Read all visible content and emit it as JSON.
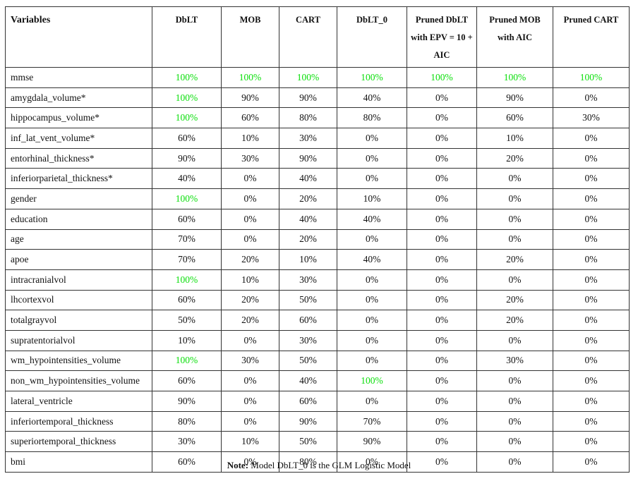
{
  "table": {
    "headers": [
      "Variables",
      "DbLT",
      "MOB",
      "CART",
      "DbLT_0",
      "Pruned DbLT with EPV = 10 + AIC",
      "Pruned MOB with AIC",
      "Pruned CART"
    ],
    "rows": [
      {
        "name": "mmse",
        "values": [
          "100%",
          "100%",
          "100%",
          "100%",
          "100%",
          "100%",
          "100%"
        ],
        "highlight": [
          true,
          true,
          true,
          true,
          true,
          true,
          true
        ]
      },
      {
        "name": "amygdala_volume*",
        "values": [
          "100%",
          "90%",
          "90%",
          "40%",
          "0%",
          "90%",
          "0%"
        ],
        "highlight": [
          true,
          false,
          false,
          false,
          false,
          false,
          false
        ]
      },
      {
        "name": "hippocampus_volume*",
        "values": [
          "100%",
          "60%",
          "80%",
          "80%",
          "0%",
          "60%",
          "30%"
        ],
        "highlight": [
          true,
          false,
          false,
          false,
          false,
          false,
          false
        ]
      },
      {
        "name": "inf_lat_vent_volume*",
        "values": [
          "60%",
          "10%",
          "30%",
          "0%",
          "0%",
          "10%",
          "0%"
        ],
        "highlight": [
          false,
          false,
          false,
          false,
          false,
          false,
          false
        ]
      },
      {
        "name": "entorhinal_thickness*",
        "values": [
          "90%",
          "30%",
          "90%",
          "0%",
          "0%",
          "20%",
          "0%"
        ],
        "highlight": [
          false,
          false,
          false,
          false,
          false,
          false,
          false
        ]
      },
      {
        "name": "inferiorparietal_thickness*",
        "values": [
          "40%",
          "0%",
          "40%",
          "0%",
          "0%",
          "0%",
          "0%"
        ],
        "highlight": [
          false,
          false,
          false,
          false,
          false,
          false,
          false
        ]
      },
      {
        "name": "gender",
        "values": [
          "100%",
          "0%",
          "20%",
          "10%",
          "0%",
          "0%",
          "0%"
        ],
        "highlight": [
          true,
          false,
          false,
          false,
          false,
          false,
          false
        ]
      },
      {
        "name": "education",
        "values": [
          "60%",
          "0%",
          "40%",
          "40%",
          "0%",
          "0%",
          "0%"
        ],
        "highlight": [
          false,
          false,
          false,
          false,
          false,
          false,
          false
        ]
      },
      {
        "name": "age",
        "values": [
          "70%",
          "0%",
          "20%",
          "0%",
          "0%",
          "0%",
          "0%"
        ],
        "highlight": [
          false,
          false,
          false,
          false,
          false,
          false,
          false
        ]
      },
      {
        "name": "apoe",
        "values": [
          "70%",
          "20%",
          "10%",
          "40%",
          "0%",
          "20%",
          "0%"
        ],
        "highlight": [
          false,
          false,
          false,
          false,
          false,
          false,
          false
        ]
      },
      {
        "name": "intracranialvol",
        "values": [
          "100%",
          "10%",
          "30%",
          "0%",
          "0%",
          "0%",
          "0%"
        ],
        "highlight": [
          true,
          false,
          false,
          false,
          false,
          false,
          false
        ]
      },
      {
        "name": "lhcortexvol",
        "values": [
          "60%",
          "20%",
          "50%",
          "0%",
          "0%",
          "20%",
          "0%"
        ],
        "highlight": [
          false,
          false,
          false,
          false,
          false,
          false,
          false
        ]
      },
      {
        "name": "totalgrayvol",
        "values": [
          "50%",
          "20%",
          "60%",
          "0%",
          "0%",
          "20%",
          "0%"
        ],
        "highlight": [
          false,
          false,
          false,
          false,
          false,
          false,
          false
        ]
      },
      {
        "name": "supratentorialvol",
        "values": [
          "10%",
          "0%",
          "30%",
          "0%",
          "0%",
          "0%",
          "0%"
        ],
        "highlight": [
          false,
          false,
          false,
          false,
          false,
          false,
          false
        ]
      },
      {
        "name": "wm_hypointensities_volume",
        "values": [
          "100%",
          "30%",
          "50%",
          "0%",
          "0%",
          "30%",
          "0%"
        ],
        "highlight": [
          true,
          false,
          false,
          false,
          false,
          false,
          false
        ]
      },
      {
        "name": "non_wm_hypointensities_volume",
        "values": [
          "60%",
          "0%",
          "40%",
          "100%",
          "0%",
          "0%",
          "0%"
        ],
        "highlight": [
          false,
          false,
          false,
          true,
          false,
          false,
          false
        ]
      },
      {
        "name": "lateral_ventricle",
        "values": [
          "90%",
          "0%",
          "60%",
          "0%",
          "0%",
          "0%",
          "0%"
        ],
        "highlight": [
          false,
          false,
          false,
          false,
          false,
          false,
          false
        ]
      },
      {
        "name": "inferiortemporal_thickness",
        "values": [
          "80%",
          "0%",
          "90%",
          "70%",
          "0%",
          "0%",
          "0%"
        ],
        "highlight": [
          false,
          false,
          false,
          false,
          false,
          false,
          false
        ]
      },
      {
        "name": "superiortemporal_thickness",
        "values": [
          "30%",
          "10%",
          "50%",
          "90%",
          "0%",
          "0%",
          "0%"
        ],
        "highlight": [
          false,
          false,
          false,
          false,
          false,
          false,
          false
        ]
      },
      {
        "name": "bmi",
        "values": [
          "60%",
          "0%",
          "80%",
          "0%",
          "0%",
          "0%",
          "0%"
        ],
        "highlight": [
          false,
          false,
          false,
          false,
          false,
          false,
          false
        ]
      }
    ],
    "light_separator_rows": [
      2
    ]
  },
  "note": {
    "label": "Note:",
    "text": "Model DbLT_0 is the GLM Logistic Model"
  },
  "colors": {
    "highlight": "#0adf0a"
  }
}
